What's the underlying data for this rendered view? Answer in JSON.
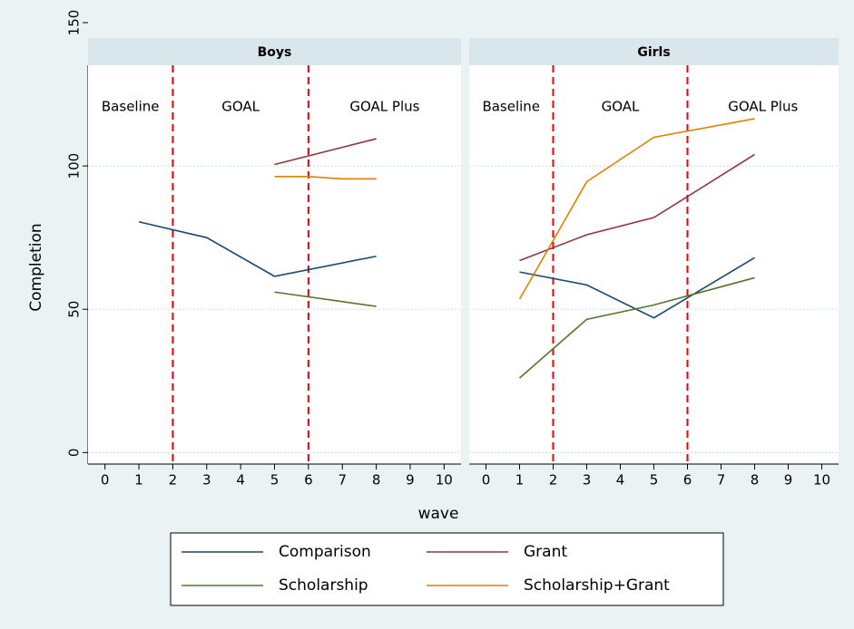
{
  "chart_data": {
    "type": "line",
    "y_label": "Completion",
    "x_label": "wave",
    "xlim": [
      -0.5,
      10.5
    ],
    "xticks": [
      0,
      1,
      2,
      3,
      4,
      5,
      6,
      7,
      8,
      9,
      10
    ],
    "ylim": [
      -4,
      150
    ],
    "yticks": [
      0,
      50,
      100,
      150
    ],
    "grid": true,
    "phase_lines": [
      2,
      6
    ],
    "phase_labels": [
      "Baseline",
      "GOAL",
      "GOAL Plus"
    ],
    "series": [
      {
        "name": "Comparison",
        "color": "#1a476f"
      },
      {
        "name": "Grant",
        "color": "#90353b"
      },
      {
        "name": "Scholarship",
        "color": "#55752f"
      },
      {
        "name": "Scholarship+Grant",
        "color": "#e37e00"
      }
    ],
    "panels": [
      {
        "title": "Boys",
        "data": [
          {
            "x": [
              1,
              3,
              5,
              8
            ],
            "values": [
              80.5,
              75,
              61.5,
              68.5
            ]
          },
          {
            "x": [
              5,
              8
            ],
            "values": [
              100.5,
              109.5
            ]
          },
          {
            "x": [
              5,
              8
            ],
            "values": [
              56,
              51
            ]
          },
          {
            "x": [
              5,
              6,
              7,
              8
            ],
            "values": [
              96.3,
              96.3,
              95.5,
              95.5
            ]
          }
        ]
      },
      {
        "title": "Girls",
        "data": [
          {
            "x": [
              1,
              3,
              5,
              8
            ],
            "values": [
              63,
              58.5,
              47,
              68
            ]
          },
          {
            "x": [
              1,
              3,
              5,
              8
            ],
            "values": [
              67,
              76,
              82,
              104
            ]
          },
          {
            "x": [
              1,
              3,
              5,
              8
            ],
            "values": [
              26,
              46.5,
              51.5,
              61
            ]
          },
          {
            "x": [
              1,
              3,
              5,
              8
            ],
            "values": [
              53.5,
              94.5,
              110,
              116.5
            ]
          }
        ]
      }
    ]
  }
}
